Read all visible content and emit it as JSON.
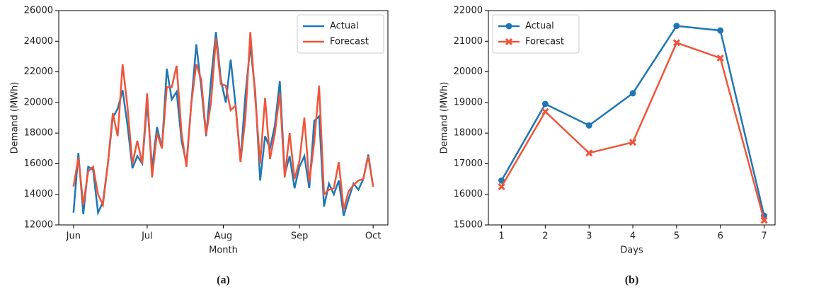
{
  "chart_data": [
    {
      "type": "line",
      "xlabel": "Month",
      "ylabel": "Demand (MWh)",
      "caption": "(a)",
      "legend": "upper right",
      "x": [
        0,
        2,
        4,
        6,
        8,
        10,
        12,
        14,
        16,
        18,
        20,
        22,
        24,
        26,
        28,
        30,
        32,
        34,
        36,
        38,
        40,
        42,
        44,
        46,
        48,
        50,
        52,
        54,
        56,
        58,
        60,
        62,
        64,
        66,
        68,
        70,
        72,
        74,
        76,
        78,
        80,
        82,
        84,
        86,
        88,
        90,
        92,
        94,
        96,
        98,
        100,
        102,
        104,
        106,
        108,
        110,
        112,
        114,
        116,
        118,
        120,
        122
      ],
      "xlim": [
        -6,
        128
      ],
      "xticks": [
        {
          "value": 0,
          "label": "Jun"
        },
        {
          "value": 30,
          "label": "Jul"
        },
        {
          "value": 61,
          "label": "Aug"
        },
        {
          "value": 92,
          "label": "Sep"
        },
        {
          "value": 122,
          "label": "Oct"
        }
      ],
      "ylim": [
        12000,
        26000
      ],
      "yticks": [
        12000,
        14000,
        16000,
        18000,
        20000,
        22000,
        24000,
        26000
      ],
      "series": [
        {
          "name": "Actual",
          "color": "#1f77b4",
          "values": [
            12800,
            16700,
            12700,
            15800,
            15600,
            12800,
            13500,
            16000,
            19000,
            19600,
            20800,
            18500,
            15700,
            16500,
            16000,
            20000,
            15700,
            18400,
            17000,
            22200,
            20200,
            20700,
            17500,
            16000,
            20000,
            23800,
            21000,
            17800,
            21500,
            24600,
            21500,
            20000,
            22800,
            19800,
            16200,
            20500,
            23700,
            20700,
            14900,
            17800,
            17000,
            18500,
            21400,
            15300,
            16500,
            14400,
            15800,
            16500,
            14400,
            18800,
            19100,
            13200,
            14700,
            14000,
            14900,
            12600,
            13700,
            14700,
            14300,
            15000,
            16600,
            14500
          ]
        },
        {
          "name": "Forecast",
          "color": "#ef553b",
          "values": [
            14500,
            16400,
            13300,
            15500,
            15800,
            14000,
            13300,
            16000,
            19300,
            17800,
            22500,
            19700,
            16000,
            17500,
            16000,
            20600,
            15100,
            18000,
            17000,
            21000,
            21000,
            22400,
            18000,
            15800,
            20000,
            22500,
            21500,
            17900,
            20000,
            24200,
            21200,
            21100,
            19500,
            19800,
            16100,
            19000,
            24600,
            20300,
            16000,
            20300,
            16300,
            18000,
            20600,
            15100,
            18000,
            15000,
            16200,
            19000,
            14800,
            17400,
            21100,
            14000,
            14300,
            14400,
            16100,
            13000,
            14200,
            14600,
            14900,
            15000,
            16500,
            14500
          ]
        }
      ]
    },
    {
      "type": "line",
      "xlabel": "Days",
      "ylabel": "Demand (MWh)",
      "caption": "(b)",
      "legend": "upper left",
      "x": [
        1,
        2,
        3,
        4,
        5,
        6,
        7
      ],
      "xlim": [
        0.7,
        7.25
      ],
      "xticks": [
        1,
        2,
        3,
        4,
        5,
        6,
        7
      ],
      "ylim": [
        15000,
        22000
      ],
      "yticks": [
        15000,
        16000,
        17000,
        18000,
        19000,
        20000,
        21000,
        22000
      ],
      "series": [
        {
          "name": "Actual",
          "color": "#1f77b4",
          "marker": "circle",
          "values": [
            16450,
            18950,
            18250,
            19300,
            21500,
            21350,
            15300
          ]
        },
        {
          "name": "Forecast",
          "color": "#ef553b",
          "marker": "x",
          "values": [
            16250,
            18700,
            17350,
            17700,
            20950,
            20450,
            15150
          ]
        }
      ]
    }
  ]
}
